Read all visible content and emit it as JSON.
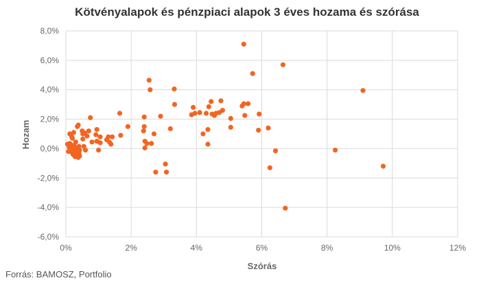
{
  "title": "Kötvényalapok és pénzpiaci alapok 3 éves hozama és szórása",
  "source": "Forrás: BAMOSZ, Portfolio",
  "chart_data": {
    "type": "scatter",
    "xlabel": "Szórás",
    "ylabel": "Hozam",
    "xlim": [
      0,
      12
    ],
    "ylim": [
      -6,
      8
    ],
    "x_ticks": [
      "0%",
      "2%",
      "4%",
      "6%",
      "8%",
      "10%",
      "12%"
    ],
    "y_ticks": [
      "8,0%",
      "6,0%",
      "4,0%",
      "2,0%",
      "0,0%",
      "-2,0%",
      "-4,0%",
      "-6,0%"
    ],
    "x_tick_values": [
      0,
      2,
      4,
      6,
      8,
      10,
      12
    ],
    "y_tick_values": [
      8,
      6,
      4,
      2,
      0,
      -2,
      -4,
      -6
    ],
    "grid": true,
    "marker_color": "#f26522",
    "points": [
      [
        0.05,
        0.3
      ],
      [
        0.08,
        -0.2
      ],
      [
        0.1,
        0.1
      ],
      [
        0.12,
        1.0
      ],
      [
        0.12,
        0.35
      ],
      [
        0.14,
        -0.1
      ],
      [
        0.15,
        0.0
      ],
      [
        0.16,
        0.25
      ],
      [
        0.18,
        0.8
      ],
      [
        0.18,
        -0.25
      ],
      [
        0.2,
        0.05
      ],
      [
        0.2,
        0.7
      ],
      [
        0.22,
        -0.4
      ],
      [
        0.24,
        1.1
      ],
      [
        0.25,
        -0.3
      ],
      [
        0.25,
        0.2
      ],
      [
        0.28,
        -0.55
      ],
      [
        0.28,
        0.1
      ],
      [
        0.3,
        -0.15
      ],
      [
        0.3,
        0.45
      ],
      [
        0.32,
        -0.2
      ],
      [
        0.33,
        0.0
      ],
      [
        0.35,
        1.5
      ],
      [
        0.35,
        -0.45
      ],
      [
        0.38,
        -0.6
      ],
      [
        0.38,
        1.6
      ],
      [
        0.4,
        -0.3
      ],
      [
        0.4,
        0.15
      ],
      [
        0.42,
        -0.1
      ],
      [
        0.42,
        -0.5
      ],
      [
        0.5,
        1.2
      ],
      [
        0.52,
        1.0
      ],
      [
        0.52,
        0.65
      ],
      [
        0.55,
        0.15
      ],
      [
        0.58,
        1.05
      ],
      [
        0.6,
        -0.1
      ],
      [
        0.65,
        0.85
      ],
      [
        0.7,
        1.2
      ],
      [
        0.75,
        2.1
      ],
      [
        0.8,
        0.45
      ],
      [
        0.92,
        0.95
      ],
      [
        0.95,
        0.5
      ],
      [
        0.95,
        1.3
      ],
      [
        1.0,
        -0.1
      ],
      [
        1.05,
        0.8
      ],
      [
        1.05,
        0.4
      ],
      [
        1.25,
        0.6
      ],
      [
        1.3,
        0.8
      ],
      [
        1.33,
        0.45
      ],
      [
        1.38,
        0.3
      ],
      [
        1.42,
        0.8
      ],
      [
        1.65,
        2.4
      ],
      [
        1.68,
        0.9
      ],
      [
        1.9,
        1.5
      ],
      [
        2.38,
        1.2
      ],
      [
        2.4,
        2.15
      ],
      [
        2.4,
        1.5
      ],
      [
        2.42,
        0.5
      ],
      [
        2.42,
        0.05
      ],
      [
        2.48,
        0.35
      ],
      [
        2.55,
        4.65
      ],
      [
        2.58,
        4.0
      ],
      [
        2.62,
        0.35
      ],
      [
        2.7,
        1.0
      ],
      [
        2.75,
        -1.6
      ],
      [
        2.9,
        2.2
      ],
      [
        3.05,
        -1.05
      ],
      [
        3.08,
        -1.6
      ],
      [
        3.2,
        1.35
      ],
      [
        3.32,
        4.05
      ],
      [
        3.33,
        3.0
      ],
      [
        3.85,
        2.3
      ],
      [
        3.9,
        2.8
      ],
      [
        3.95,
        2.4
      ],
      [
        4.1,
        2.45
      ],
      [
        4.2,
        1.0
      ],
      [
        4.3,
        2.4
      ],
      [
        4.35,
        1.3
      ],
      [
        4.35,
        0.3
      ],
      [
        4.38,
        2.85
      ],
      [
        4.45,
        3.2
      ],
      [
        4.48,
        2.35
      ],
      [
        4.55,
        2.25
      ],
      [
        4.6,
        2.4
      ],
      [
        4.7,
        2.45
      ],
      [
        4.75,
        3.25
      ],
      [
        4.8,
        2.6
      ],
      [
        5.05,
        2.05
      ],
      [
        5.05,
        1.45
      ],
      [
        5.4,
        2.9
      ],
      [
        5.45,
        3.05
      ],
      [
        5.45,
        7.1
      ],
      [
        5.48,
        2.25
      ],
      [
        5.58,
        3.05
      ],
      [
        5.72,
        5.1
      ],
      [
        5.9,
        1.25
      ],
      [
        5.92,
        2.35
      ],
      [
        6.2,
        1.4
      ],
      [
        6.25,
        -1.3
      ],
      [
        6.42,
        -0.15
      ],
      [
        6.65,
        5.7
      ],
      [
        6.72,
        -4.05
      ],
      [
        8.25,
        -0.1
      ],
      [
        9.1,
        3.95
      ],
      [
        9.72,
        -1.2
      ]
    ]
  }
}
